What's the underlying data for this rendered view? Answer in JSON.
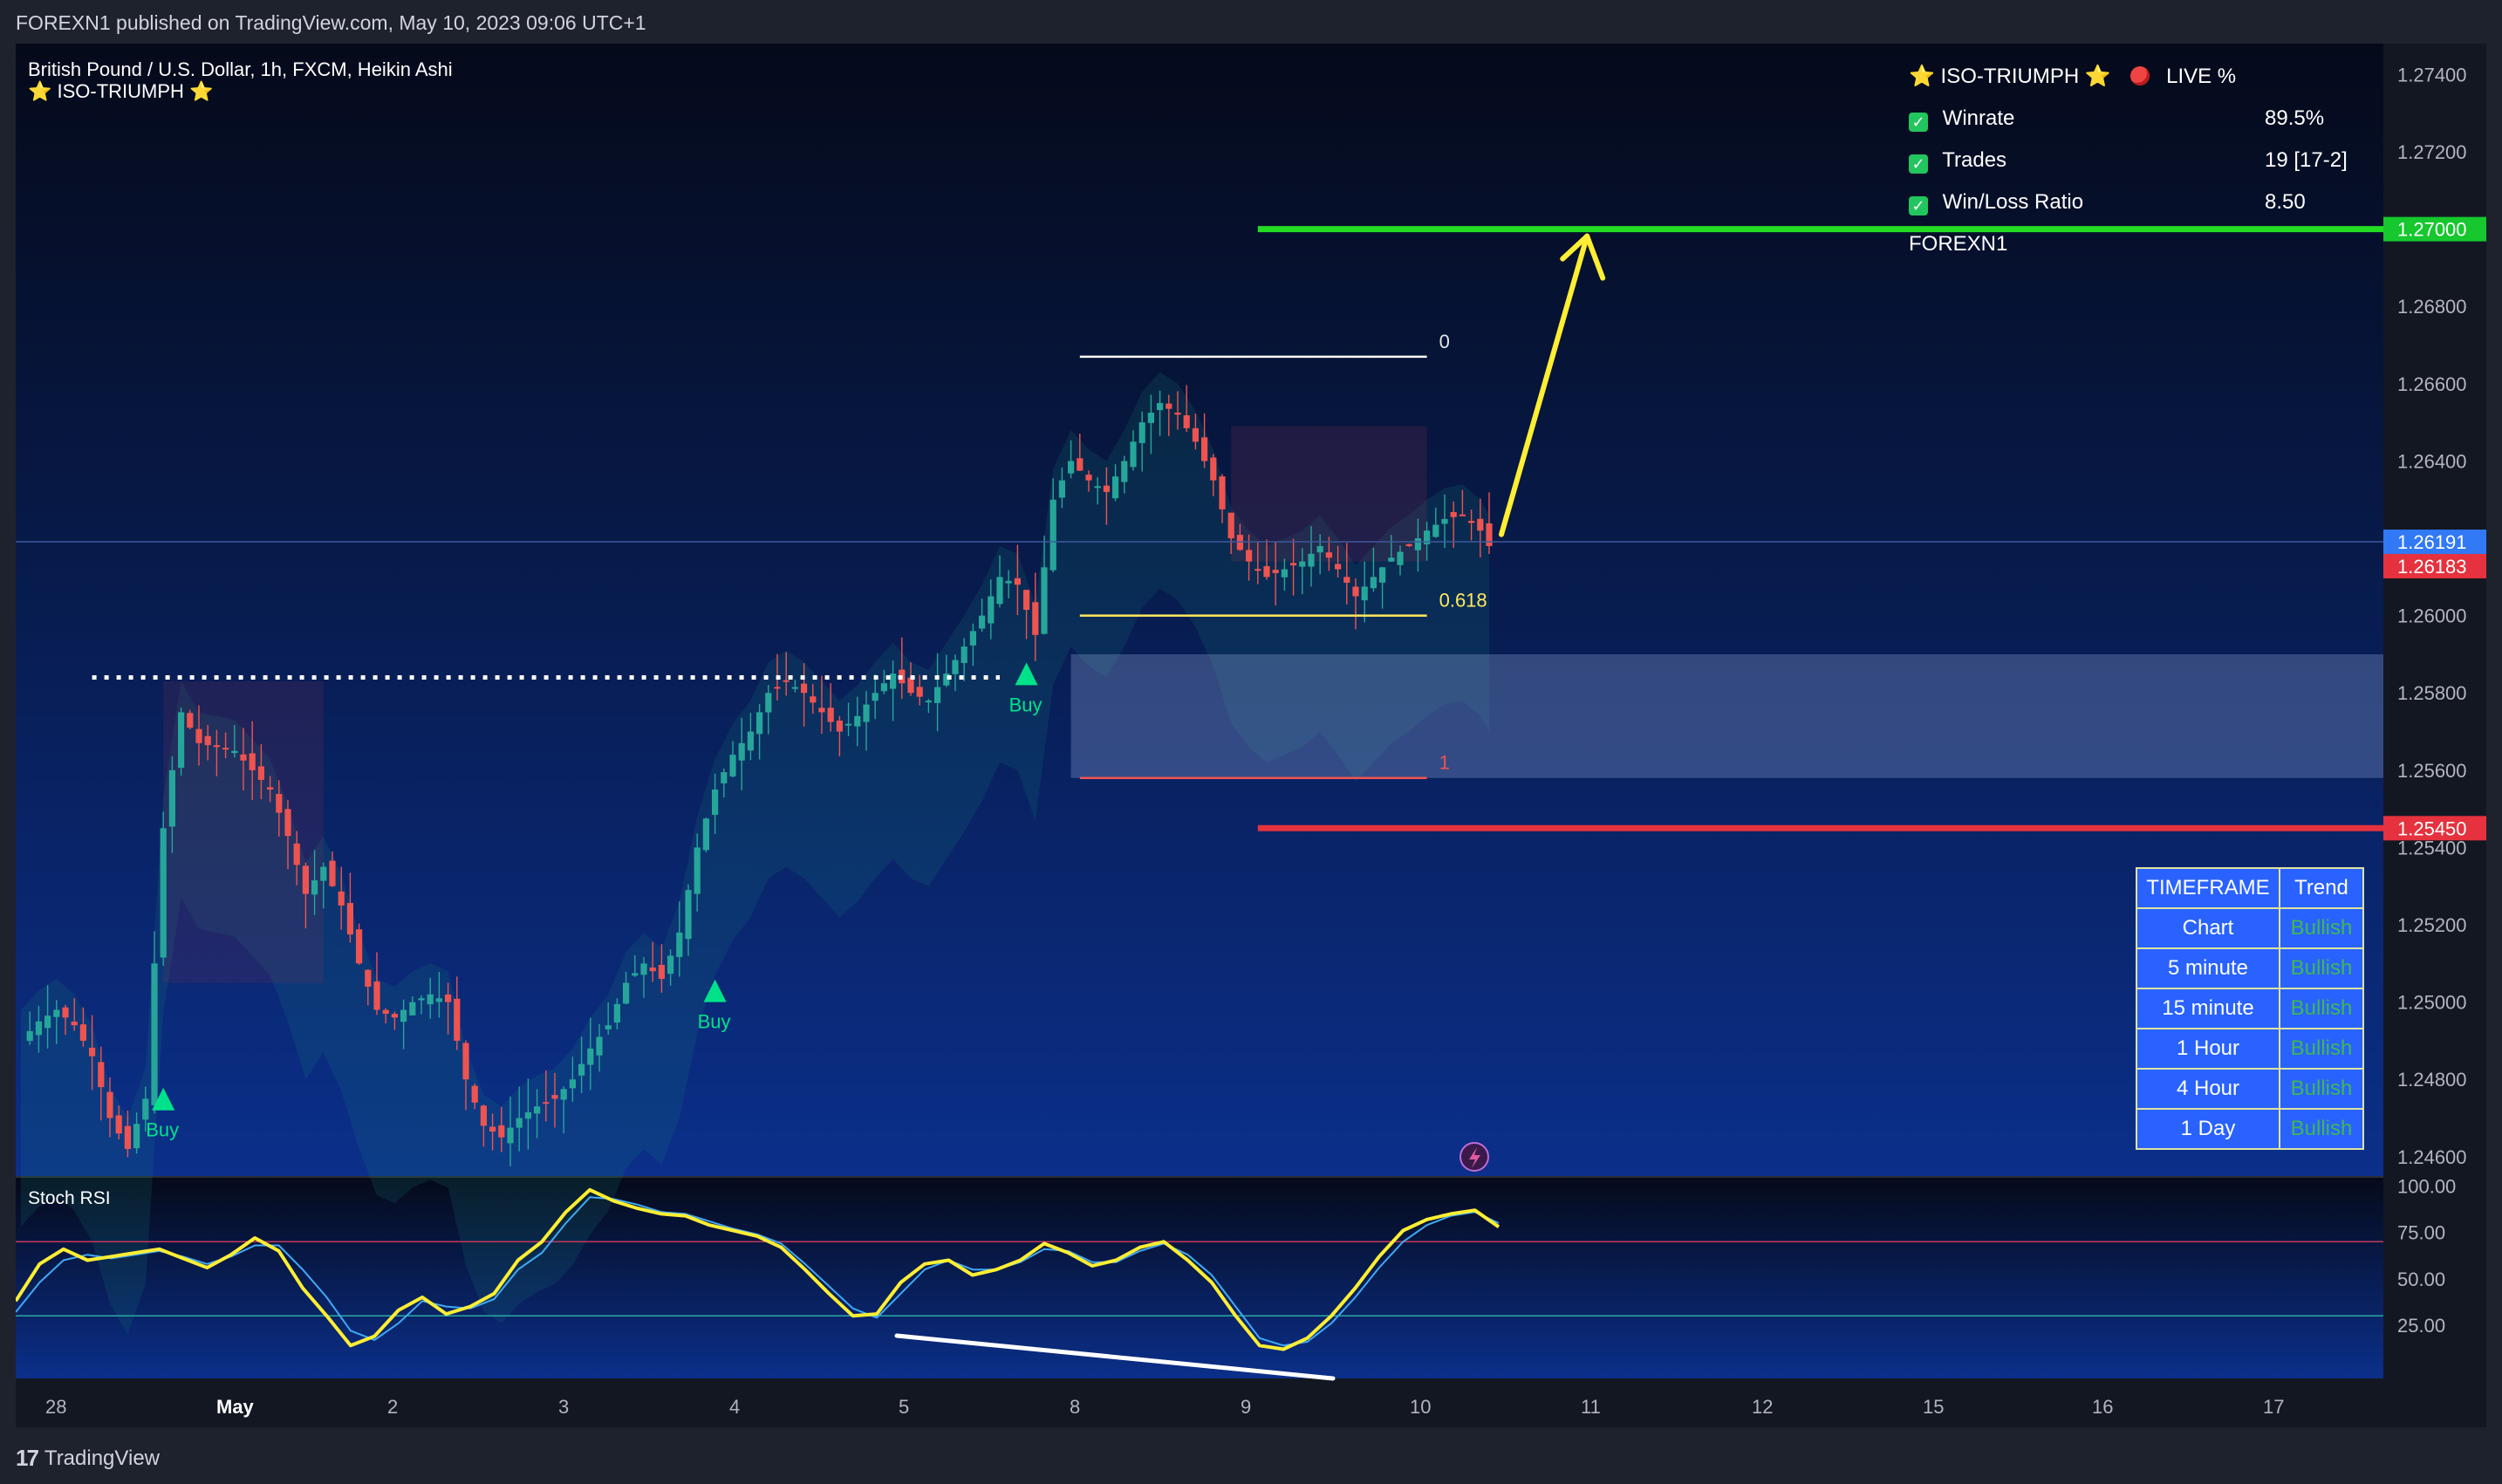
{
  "header": {
    "published": "FOREXN1 published on TradingView.com, May 10, 2023 09:06 UTC+1"
  },
  "footer": {
    "brand": "TradingView"
  },
  "legend": {
    "symbol": "British Pound / U.S. Dollar, 1h, FXCM, Heikin Ashi",
    "indicator": "⭐ ISO-TRIUMPH ⭐"
  },
  "stats_panel": {
    "title": "⭐ ISO-TRIUMPH ⭐",
    "live": "LIVE %",
    "rows": [
      {
        "label": "Winrate",
        "value": "89.5%"
      },
      {
        "label": "Trades",
        "value": "19 [17-2]"
      },
      {
        "label": "Win/Loss Ratio",
        "value": "8.50"
      }
    ],
    "author": "FOREXN1"
  },
  "timeframe_table": {
    "headers": [
      "TIMEFRAME",
      "Trend"
    ],
    "rows": [
      {
        "tf": "Chart",
        "trend": "Bullish"
      },
      {
        "tf": "5 minute",
        "trend": "Bullish"
      },
      {
        "tf": "15 minute",
        "trend": "Bullish"
      },
      {
        "tf": "1 Hour",
        "trend": "Bullish"
      },
      {
        "tf": "4 Hour",
        "trend": "Bullish"
      },
      {
        "tf": "1 Day",
        "trend": "Bullish"
      }
    ]
  },
  "price_tags": {
    "target": "1.27000",
    "current_blue": "1.26191",
    "current_red": "1.26183",
    "stop": "1.25450"
  },
  "fib_labels": {
    "top": "0",
    "mid": "0.618",
    "bottom": "1"
  },
  "signal_label": "Buy",
  "stoch_label": "Stoch RSI",
  "colors": {
    "up": "#26a69a",
    "down": "#ef5350",
    "target": "#22dd22",
    "stop": "#e5323e",
    "arrow": "#ffee33",
    "stoch_k": "#ffee33",
    "stoch_d": "#3fa9f5",
    "bg_top": "#050a1a",
    "bg_bottom": "#0b2f8a"
  },
  "chart_data": [
    {
      "type": "candlestick",
      "title": "British Pound / U.S. Dollar, 1h, FXCM, Heikin Ashi",
      "y_ticks": [
        1.274,
        1.272,
        1.268,
        1.266,
        1.264,
        1.26,
        1.258,
        1.256,
        1.254,
        1.252,
        1.25,
        1.248,
        1.246
      ],
      "ylim": [
        1.2455,
        1.2748
      ],
      "x_ticks": [
        "28",
        "May",
        "2",
        "3",
        "4",
        "5",
        "8",
        "9",
        "10",
        "11",
        "12",
        "15",
        "16",
        "17"
      ],
      "path_points": [
        [
          0,
          1.249
        ],
        [
          2,
          1.2495
        ],
        [
          4,
          1.2498
        ],
        [
          6,
          1.2494
        ],
        [
          8,
          1.2486
        ],
        [
          10,
          1.247
        ],
        [
          12,
          1.2462
        ],
        [
          14,
          1.2475
        ],
        [
          16,
          1.2545
        ],
        [
          18,
          1.2575
        ],
        [
          20,
          1.2567
        ],
        [
          22,
          1.2566
        ],
        [
          24,
          1.2565
        ],
        [
          26,
          1.256
        ],
        [
          28,
          1.2555
        ],
        [
          30,
          1.2543
        ],
        [
          32,
          1.2528
        ],
        [
          34,
          1.2535
        ],
        [
          36,
          1.2525
        ],
        [
          38,
          1.251
        ],
        [
          40,
          1.2498
        ],
        [
          42,
          1.2496
        ],
        [
          44,
          1.25
        ],
        [
          46,
          1.2502
        ],
        [
          48,
          1.25
        ],
        [
          50,
          1.248
        ],
        [
          52,
          1.2468
        ],
        [
          54,
          1.2465
        ],
        [
          56,
          1.247
        ],
        [
          58,
          1.2473
        ],
        [
          60,
          1.2475
        ],
        [
          62,
          1.248
        ],
        [
          64,
          1.2488
        ],
        [
          66,
          1.2494
        ],
        [
          68,
          1.2505
        ],
        [
          70,
          1.251
        ],
        [
          72,
          1.2506
        ],
        [
          74,
          1.2518
        ],
        [
          76,
          1.254
        ],
        [
          78,
          1.2555
        ],
        [
          80,
          1.2564
        ],
        [
          82,
          1.257
        ],
        [
          84,
          1.258
        ],
        [
          86,
          1.2583
        ],
        [
          88,
          1.258
        ],
        [
          90,
          1.2575
        ],
        [
          92,
          1.257
        ],
        [
          94,
          1.2574
        ],
        [
          96,
          1.258
        ],
        [
          98,
          1.2585
        ],
        [
          100,
          1.258
        ],
        [
          102,
          1.2578
        ],
        [
          104,
          1.2585
        ],
        [
          106,
          1.2592
        ],
        [
          108,
          1.26
        ],
        [
          110,
          1.261
        ],
        [
          112,
          1.2608
        ],
        [
          114,
          1.2595
        ],
        [
          116,
          1.263
        ],
        [
          118,
          1.264
        ],
        [
          120,
          1.2635
        ],
        [
          122,
          1.2632
        ],
        [
          124,
          1.264
        ],
        [
          126,
          1.265
        ],
        [
          128,
          1.2655
        ],
        [
          130,
          1.2652
        ],
        [
          132,
          1.2645
        ],
        [
          134,
          1.2635
        ],
        [
          136,
          1.262
        ],
        [
          138,
          1.2614
        ],
        [
          140,
          1.261
        ],
        [
          142,
          1.2612
        ],
        [
          144,
          1.2614
        ],
        [
          146,
          1.2618
        ],
        [
          148,
          1.2612
        ],
        [
          150,
          1.2605
        ],
        [
          152,
          1.261
        ],
        [
          154,
          1.2615
        ],
        [
          156,
          1.2618
        ],
        [
          158,
          1.2622
        ],
        [
          160,
          1.2625
        ],
        [
          162,
          1.2626
        ],
        [
          164,
          1.2622
        ],
        [
          165,
          1.2618
        ]
      ],
      "targets": {
        "take_profit": 1.27,
        "stop_loss": 1.2545,
        "fib_0": 1.2667,
        "fib_0618": 1.26,
        "fib_1": 1.2558
      },
      "support_dotted": 1.2584,
      "zone": [
        1.2558,
        1.259
      ],
      "buy_signals": [
        "Apr 28",
        "May 3",
        "May 5"
      ]
    },
    {
      "type": "line",
      "title": "Stoch RSI",
      "y_ticks": [
        100.0,
        75.0,
        50.0,
        25.0
      ],
      "ylim": [
        0,
        100
      ],
      "bands": [
        70,
        30
      ],
      "series": [
        {
          "name": "K",
          "values": [
            38,
            58,
            66,
            60,
            62,
            64,
            66,
            61,
            56,
            63,
            72,
            65,
            45,
            30,
            14,
            19,
            33,
            40,
            31,
            35,
            42,
            60,
            70,
            86,
            98,
            92,
            88,
            85,
            84,
            79,
            76,
            73,
            67,
            55,
            42,
            30,
            31,
            48,
            58,
            60,
            52,
            55,
            60,
            69,
            64,
            57,
            60,
            67,
            70,
            60,
            48,
            30,
            14,
            12,
            18,
            30,
            45,
            62,
            76,
            82,
            85,
            87,
            78
          ]
        },
        {
          "name": "D",
          "values": [
            32,
            48,
            60,
            63,
            61,
            63,
            65,
            62,
            58,
            62,
            68,
            68,
            55,
            40,
            22,
            17,
            26,
            38,
            35,
            34,
            39,
            55,
            64,
            80,
            94,
            93,
            90,
            86,
            85,
            81,
            77,
            74,
            69,
            58,
            46,
            34,
            29,
            42,
            55,
            60,
            55,
            55,
            59,
            66,
            65,
            59,
            59,
            65,
            69,
            63,
            52,
            35,
            18,
            14,
            16,
            26,
            40,
            56,
            70,
            79,
            84,
            86,
            80
          ]
        }
      ]
    }
  ]
}
